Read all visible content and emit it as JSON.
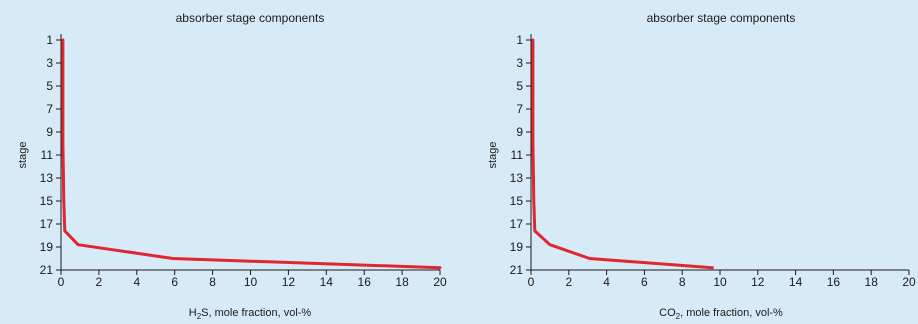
{
  "chart_data": [
    {
      "type": "line",
      "title": "absorber stage components",
      "xlabel_main": "H",
      "xlabel_sub": "2",
      "xlabel_rest": "S, mole fraction, vol-%",
      "ylabel": "stage",
      "xlim": [
        0,
        20
      ],
      "ylim": [
        21,
        1
      ],
      "y_inverted": true,
      "x_ticks": [
        0,
        2,
        4,
        6,
        8,
        10,
        12,
        14,
        16,
        18,
        20
      ],
      "y_ticks": [
        1,
        3,
        5,
        7,
        9,
        11,
        13,
        15,
        17,
        19,
        21
      ],
      "grid": false,
      "colors": {
        "series": "#e0262e",
        "background": "#d6ebf7"
      },
      "series": [
        {
          "x": [
            0.1,
            0.1,
            0.1,
            0.15,
            0.2,
            0.9,
            5.9,
            20.0
          ],
          "y": [
            1.0,
            5.0,
            10.0,
            15.0,
            17.6,
            18.8,
            20.0,
            20.8
          ]
        }
      ]
    },
    {
      "type": "line",
      "title": "absorber stage components",
      "xlabel_main": "CO",
      "xlabel_sub": "2",
      "xlabel_rest": ", mole fraction, vol-%",
      "ylabel": "stage",
      "xlim": [
        0,
        20
      ],
      "ylim": [
        21,
        1
      ],
      "y_inverted": true,
      "x_ticks": [
        0,
        2,
        4,
        6,
        8,
        10,
        12,
        14,
        16,
        18,
        20
      ],
      "y_ticks": [
        1,
        3,
        5,
        7,
        9,
        11,
        13,
        15,
        17,
        19,
        21
      ],
      "grid": false,
      "colors": {
        "series": "#e0262e",
        "background": "#d6ebf7"
      },
      "series": [
        {
          "x": [
            0.1,
            0.1,
            0.1,
            0.15,
            0.2,
            1.0,
            3.1,
            9.6
          ],
          "y": [
            1.0,
            5.0,
            10.0,
            15.0,
            17.6,
            18.8,
            20.0,
            20.8
          ]
        }
      ]
    }
  ]
}
